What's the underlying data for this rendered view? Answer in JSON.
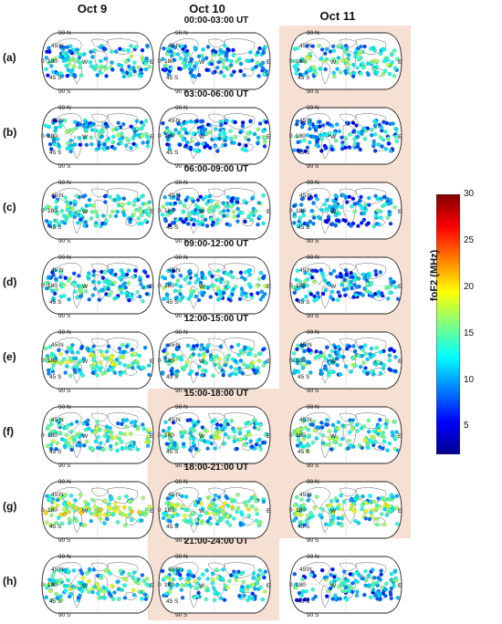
{
  "columns": [
    "Oct 9",
    "Oct 10",
    "Oct 11"
  ],
  "time_windows": [
    "00:00-03:00 UT",
    "03:00-06:00 UT",
    "06:00-09:00 UT",
    "09:00-12:00 UT",
    "12:00-15:00 UT",
    "15:00-18:00 UT",
    "18:00-21:00 UT",
    "21:00-24:00 UT"
  ],
  "row_labels": [
    "(a)",
    "(b)",
    "(c)",
    "(d)",
    "(e)",
    "(f)",
    "(g)",
    "(h)"
  ],
  "map_labels": {
    "lat_90n": "90 N",
    "lat_45n": "45 N",
    "lat_0": "0",
    "lat_45s": "45 S",
    "lat_90s": "90 S",
    "lon_180": "180",
    "lon_w": "W",
    "lon_e": "E"
  },
  "highlight_color": "#f6dfd3",
  "chart_data": {
    "type": "scatter",
    "description_colorscale": "jet",
    "colorbar": {
      "label": "foF2 (MHz)",
      "range": [
        2,
        30
      ],
      "ticks": [
        5,
        10,
        15,
        20,
        25,
        30
      ]
    },
    "panels": [
      {
        "row": "(a)",
        "day": "Oct 9",
        "mean_foF2": 11
      },
      {
        "row": "(a)",
        "day": "Oct 10",
        "mean_foF2": 10
      },
      {
        "row": "(a)",
        "day": "Oct 11",
        "mean_foF2": 13
      },
      {
        "row": "(b)",
        "day": "Oct 9",
        "mean_foF2": 11
      },
      {
        "row": "(b)",
        "day": "Oct 10",
        "mean_foF2": 10
      },
      {
        "row": "(b)",
        "day": "Oct 11",
        "mean_foF2": 9
      },
      {
        "row": "(c)",
        "day": "Oct 9",
        "mean_foF2": 12
      },
      {
        "row": "(c)",
        "day": "Oct 10",
        "mean_foF2": 11
      },
      {
        "row": "(c)",
        "day": "Oct 11",
        "mean_foF2": 10
      },
      {
        "row": "(d)",
        "day": "Oct 9",
        "mean_foF2": 11
      },
      {
        "row": "(d)",
        "day": "Oct 10",
        "mean_foF2": 11
      },
      {
        "row": "(d)",
        "day": "Oct 11",
        "mean_foF2": 10
      },
      {
        "row": "(e)",
        "day": "Oct 9",
        "mean_foF2": 13
      },
      {
        "row": "(e)",
        "day": "Oct 10",
        "mean_foF2": 12
      },
      {
        "row": "(e)",
        "day": "Oct 11",
        "mean_foF2": 11
      },
      {
        "row": "(f)",
        "day": "Oct 9",
        "mean_foF2": 13
      },
      {
        "row": "(f)",
        "day": "Oct 10",
        "mean_foF2": 12
      },
      {
        "row": "(f)",
        "day": "Oct 11",
        "mean_foF2": 13
      },
      {
        "row": "(g)",
        "day": "Oct 9",
        "mean_foF2": 15
      },
      {
        "row": "(g)",
        "day": "Oct 10",
        "mean_foF2": 14
      },
      {
        "row": "(g)",
        "day": "Oct 11",
        "mean_foF2": 14
      },
      {
        "row": "(h)",
        "day": "Oct 9",
        "mean_foF2": 13
      },
      {
        "row": "(h)",
        "day": "Oct 10",
        "mean_foF2": 12
      },
      {
        "row": "(h)",
        "day": "Oct 11",
        "mean_foF2": 10
      }
    ]
  }
}
